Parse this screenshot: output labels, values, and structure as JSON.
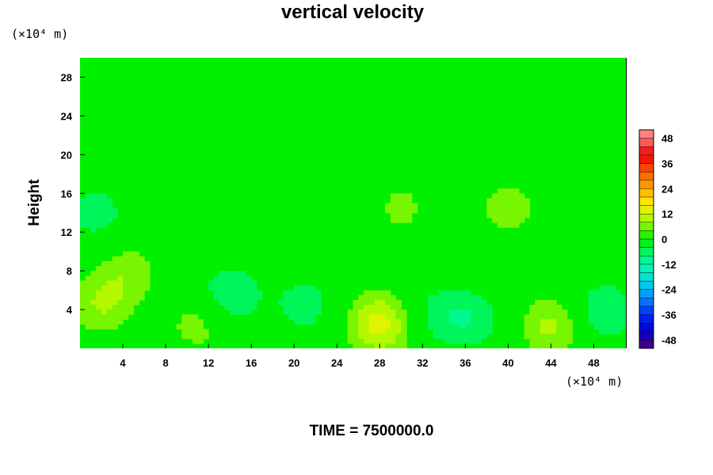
{
  "chart_data": {
    "type": "heatmap",
    "title": "vertical velocity",
    "ylabel": "Height",
    "xlabel": "",
    "x_unit": "(×10⁴ m)",
    "y_unit": "(×10⁴ m)",
    "xlim": [
      0,
      51
    ],
    "ylim": [
      0,
      30
    ],
    "x_ticks": [
      4,
      8,
      12,
      16,
      20,
      24,
      28,
      32,
      36,
      40,
      44,
      48
    ],
    "y_ticks": [
      4,
      8,
      12,
      16,
      20,
      24,
      28
    ],
    "x_tick_labels": [
      "4",
      "8",
      "12",
      "16",
      "20",
      "24",
      "28",
      "32",
      "36",
      "40",
      "44",
      "48"
    ],
    "y_tick_labels": [
      "4",
      "8",
      "12",
      "16",
      "20",
      "24",
      "28"
    ],
    "colorbar": {
      "range": [
        -52,
        52
      ],
      "step": 4,
      "ticks": [
        48,
        36,
        24,
        12,
        0,
        -12,
        -24,
        -36,
        -48
      ],
      "tick_labels": [
        "48",
        "36",
        "24",
        "12",
        "0",
        "-12",
        "-24",
        "-36",
        "-48"
      ]
    },
    "features": [
      {
        "x": 28,
        "y": 2.5,
        "value": 14,
        "kind": "updraft"
      },
      {
        "x": 44,
        "y": 2.3,
        "value": 9,
        "kind": "updraft"
      },
      {
        "x": 2,
        "y": 4.5,
        "value": 8,
        "kind": "updraft"
      },
      {
        "x": 4.5,
        "y": 8,
        "value": 6,
        "kind": "updraft"
      },
      {
        "x": 11,
        "y": 2.5,
        "value": 6,
        "kind": "updraft"
      },
      {
        "x": 40,
        "y": 14.5,
        "value": 6,
        "kind": "updraft"
      },
      {
        "x": 30,
        "y": 14.5,
        "value": 5,
        "kind": "updraft"
      },
      {
        "x": 14,
        "y": 5.5,
        "value": -8,
        "kind": "downdraft"
      },
      {
        "x": 21,
        "y": 4.5,
        "value": -6,
        "kind": "downdraft"
      },
      {
        "x": 36.5,
        "y": 3,
        "value": -7,
        "kind": "downdraft"
      },
      {
        "x": 49,
        "y": 3.8,
        "value": -8,
        "kind": "downdraft"
      },
      {
        "x": 1.5,
        "y": 14,
        "value": -6,
        "kind": "downdraft"
      },
      {
        "x": 51,
        "y": 15,
        "value": -4,
        "kind": "downdraft"
      },
      {
        "x": 33,
        "y": 3.5,
        "value": -5,
        "kind": "downdraft"
      }
    ],
    "background_value": 0
  },
  "footer": {
    "time_label": "TIME = 7500000.0"
  }
}
